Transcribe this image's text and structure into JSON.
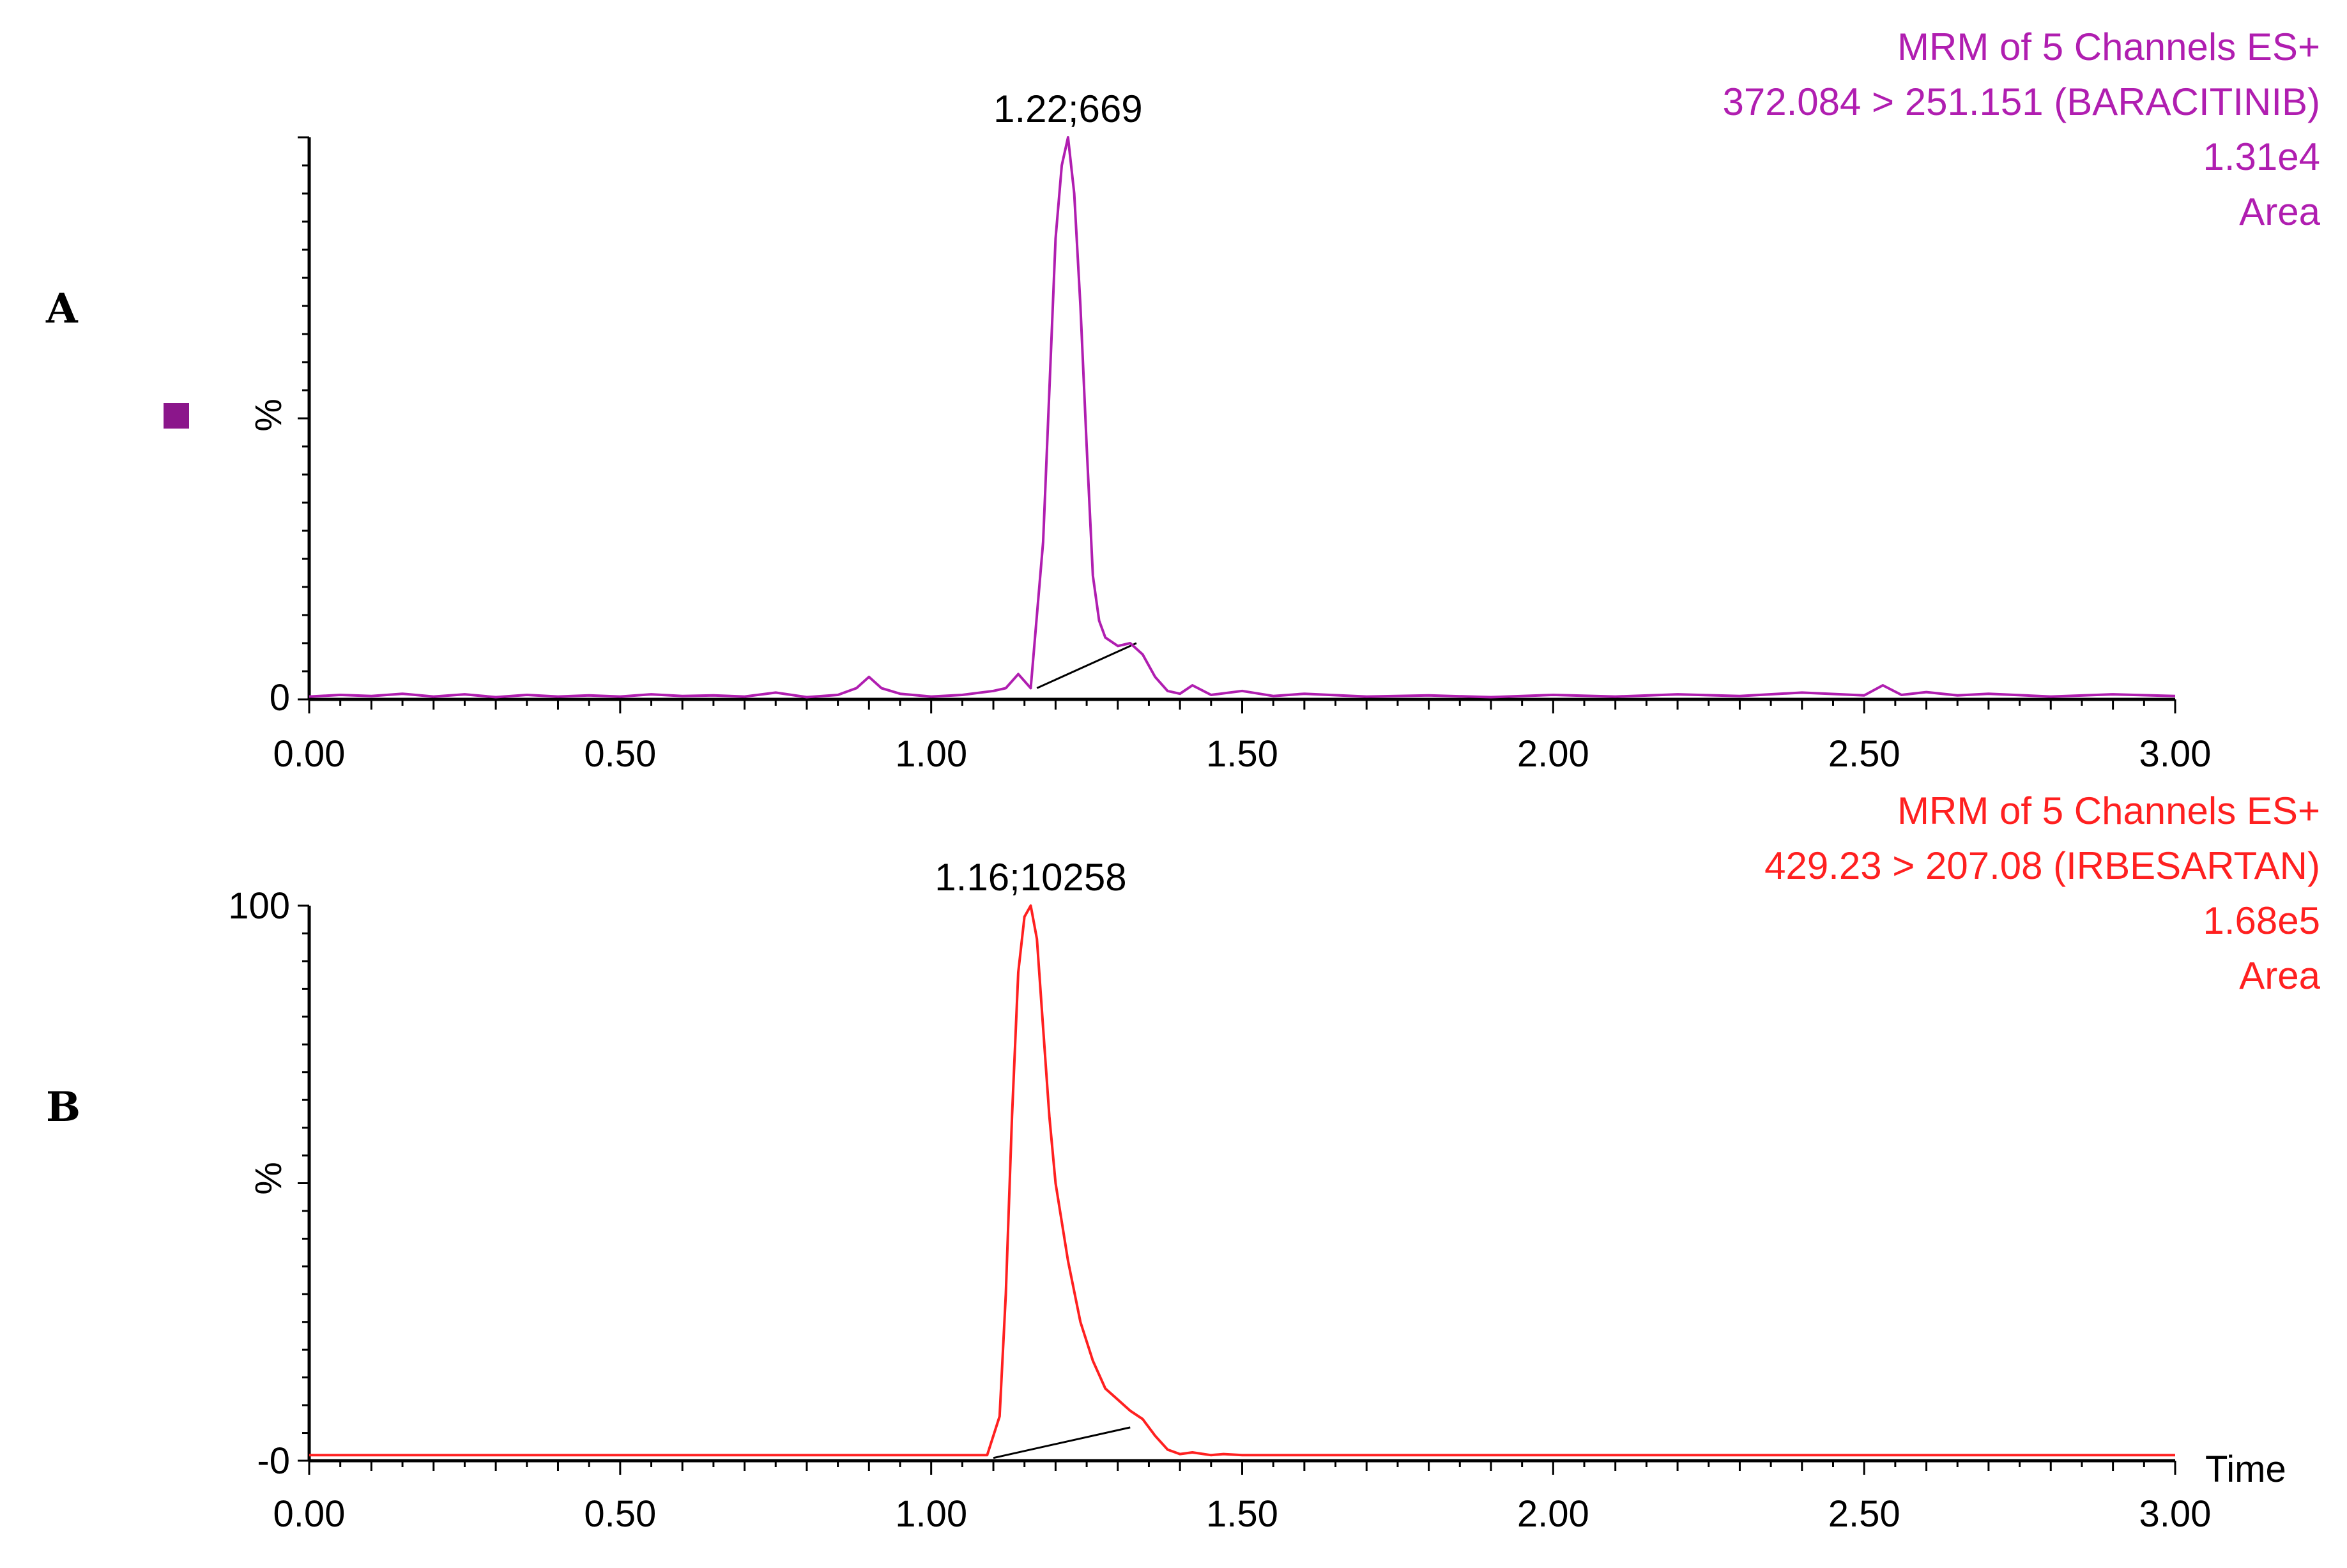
{
  "chart_data": [
    {
      "type": "line",
      "panel_label": "A",
      "color": "#b01eb0",
      "legend_marker_color": "#8b168b",
      "annotation": [
        "MRM of 5 Channels ES+",
        "372.084 > 251.151 (BARACITINIB)",
        "1.31e4",
        "Area"
      ],
      "peak_label": "1.22;669",
      "ylabel": "%",
      "xlabel": "",
      "xlim": [
        0.0,
        3.0
      ],
      "ylim": [
        0,
        100
      ],
      "xticks": [
        "0.00",
        "0.50",
        "1.00",
        "1.50",
        "2.00",
        "2.50",
        "3.00"
      ],
      "yticks": [
        "0"
      ],
      "series": [
        {
          "x": [
            0.0,
            0.05,
            0.1,
            0.15,
            0.2,
            0.25,
            0.3,
            0.35,
            0.4,
            0.45,
            0.5,
            0.55,
            0.6,
            0.65,
            0.7,
            0.75,
            0.8,
            0.85,
            0.88,
            0.9,
            0.92,
            0.95,
            1.0,
            1.05,
            1.1,
            1.12,
            1.14,
            1.16,
            1.18,
            1.19,
            1.2,
            1.21,
            1.22,
            1.23,
            1.24,
            1.25,
            1.26,
            1.27,
            1.28,
            1.3,
            1.32,
            1.34,
            1.36,
            1.38,
            1.4,
            1.42,
            1.45,
            1.5,
            1.55,
            1.6,
            1.7,
            1.8,
            1.9,
            2.0,
            2.1,
            2.2,
            2.3,
            2.4,
            2.5,
            2.53,
            2.56,
            2.6,
            2.65,
            2.7,
            2.8,
            2.9,
            3.0
          ],
          "y": [
            0.5,
            0.8,
            0.6,
            1.0,
            0.5,
            0.9,
            0.4,
            0.8,
            0.5,
            0.7,
            0.5,
            0.9,
            0.6,
            0.7,
            0.5,
            1.2,
            0.4,
            0.8,
            2.0,
            4.0,
            2.0,
            1.0,
            0.5,
            0.8,
            1.5,
            2.0,
            4.5,
            2.0,
            28.0,
            55.0,
            82.0,
            95.0,
            100.0,
            90.0,
            70.0,
            45.0,
            22.0,
            14.0,
            11.0,
            9.5,
            10.0,
            8.0,
            4.0,
            1.5,
            1.0,
            2.5,
            0.8,
            1.5,
            0.6,
            1.0,
            0.5,
            0.7,
            0.4,
            0.8,
            0.5,
            0.9,
            0.6,
            1.2,
            0.7,
            2.5,
            0.8,
            1.3,
            0.7,
            1.0,
            0.5,
            0.9,
            0.6
          ]
        }
      ],
      "baseline": {
        "x": [
          1.17,
          1.33
        ],
        "y": [
          2.0,
          10.0
        ]
      }
    },
    {
      "type": "line",
      "panel_label": "B",
      "color": "#ff2020",
      "annotation": [
        "MRM of 5 Channels ES+",
        "429.23 > 207.08 (IRBESARTAN)",
        "1.68e5",
        "Area"
      ],
      "peak_label": "1.16;10258",
      "ylabel": "%",
      "xlabel": "Time",
      "xlim": [
        0.0,
        3.0
      ],
      "ylim": [
        0,
        100
      ],
      "xticks": [
        "0.00",
        "0.50",
        "1.00",
        "1.50",
        "2.00",
        "2.50",
        "3.00"
      ],
      "yticks": [
        "-0",
        "100"
      ],
      "series": [
        {
          "x": [
            0.0,
            0.2,
            0.4,
            0.6,
            0.8,
            1.0,
            1.09,
            1.11,
            1.12,
            1.13,
            1.14,
            1.15,
            1.16,
            1.17,
            1.18,
            1.19,
            1.2,
            1.22,
            1.24,
            1.26,
            1.28,
            1.3,
            1.32,
            1.34,
            1.36,
            1.38,
            1.4,
            1.42,
            1.45,
            1.47,
            1.5,
            1.7,
            2.0,
            2.3,
            2.6,
            3.0
          ],
          "y": [
            1.0,
            1.0,
            1.0,
            1.0,
            1.0,
            1.0,
            1.0,
            8.0,
            30.0,
            62.0,
            88.0,
            98.0,
            100.0,
            94.0,
            78.0,
            62.0,
            50.0,
            36.0,
            25.0,
            18.0,
            13.0,
            11.0,
            9.0,
            7.5,
            4.5,
            2.0,
            1.2,
            1.5,
            1.0,
            1.2,
            1.0,
            1.0,
            1.0,
            1.0,
            1.0,
            1.0
          ]
        }
      ],
      "baseline": {
        "x": [
          1.1,
          1.32
        ],
        "y": [
          0.5,
          6.0
        ]
      }
    }
  ]
}
